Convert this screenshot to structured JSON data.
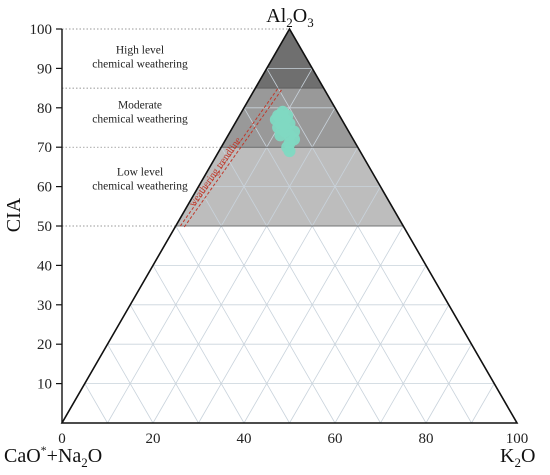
{
  "chart_data": {
    "type": "scatter",
    "subtype": "ternary-A-CN-K",
    "vertices": {
      "top": {
        "label_main": "Al",
        "sub1": "2",
        "mid": "O",
        "sub2": "3"
      },
      "left": {
        "label_main": "CaO",
        "sup": "*",
        "plus": "+Na",
        "sub": "2",
        "tail": "O"
      },
      "right": {
        "label_main": "K",
        "sub": "2",
        "tail": "O"
      }
    },
    "ylabel": "CIA",
    "y_ticks": [
      10,
      20,
      30,
      40,
      50,
      60,
      70,
      80,
      90,
      100
    ],
    "x_ticks": [
      0,
      20,
      40,
      60,
      80,
      100
    ],
    "zones": [
      {
        "name": "high",
        "from": 85,
        "to": 100,
        "label_lines": [
          "High level",
          "chemical weathering"
        ],
        "label_cia": 93,
        "color": "#6f6f6f"
      },
      {
        "name": "moderate",
        "from": 70,
        "to": 85,
        "label_lines": [
          "Moderate",
          "chemical weathering"
        ],
        "label_cia": 79,
        "color": "#999999"
      },
      {
        "name": "low",
        "from": 50,
        "to": 70,
        "label_lines": [
          "Low level",
          "chemical weathering"
        ],
        "label_cia": 62,
        "color": "#bdbdbd"
      }
    ],
    "grid_step": 10,
    "trendline": {
      "label": "weathering trendline",
      "from": [
        26,
        50
      ],
      "to": [
        47.5,
        85
      ],
      "color": "#c0392b"
    },
    "points": [
      {
        "x": 47,
        "y": 77
      },
      {
        "x": 48,
        "y": 78
      },
      {
        "x": 49,
        "y": 77
      },
      {
        "x": 48,
        "y": 76
      },
      {
        "x": 47.5,
        "y": 75
      },
      {
        "x": 49,
        "y": 75
      },
      {
        "x": 50,
        "y": 76
      },
      {
        "x": 49,
        "y": 74
      },
      {
        "x": 50,
        "y": 73
      },
      {
        "x": 51,
        "y": 72
      },
      {
        "x": 50,
        "y": 71
      },
      {
        "x": 49.5,
        "y": 70
      },
      {
        "x": 50,
        "y": 69
      },
      {
        "x": 48,
        "y": 73
      },
      {
        "x": 47.5,
        "y": 78
      },
      {
        "x": 48.5,
        "y": 79
      },
      {
        "x": 49.5,
        "y": 78
      },
      {
        "x": 51,
        "y": 74
      }
    ],
    "point_color": "#7fd9c2"
  }
}
